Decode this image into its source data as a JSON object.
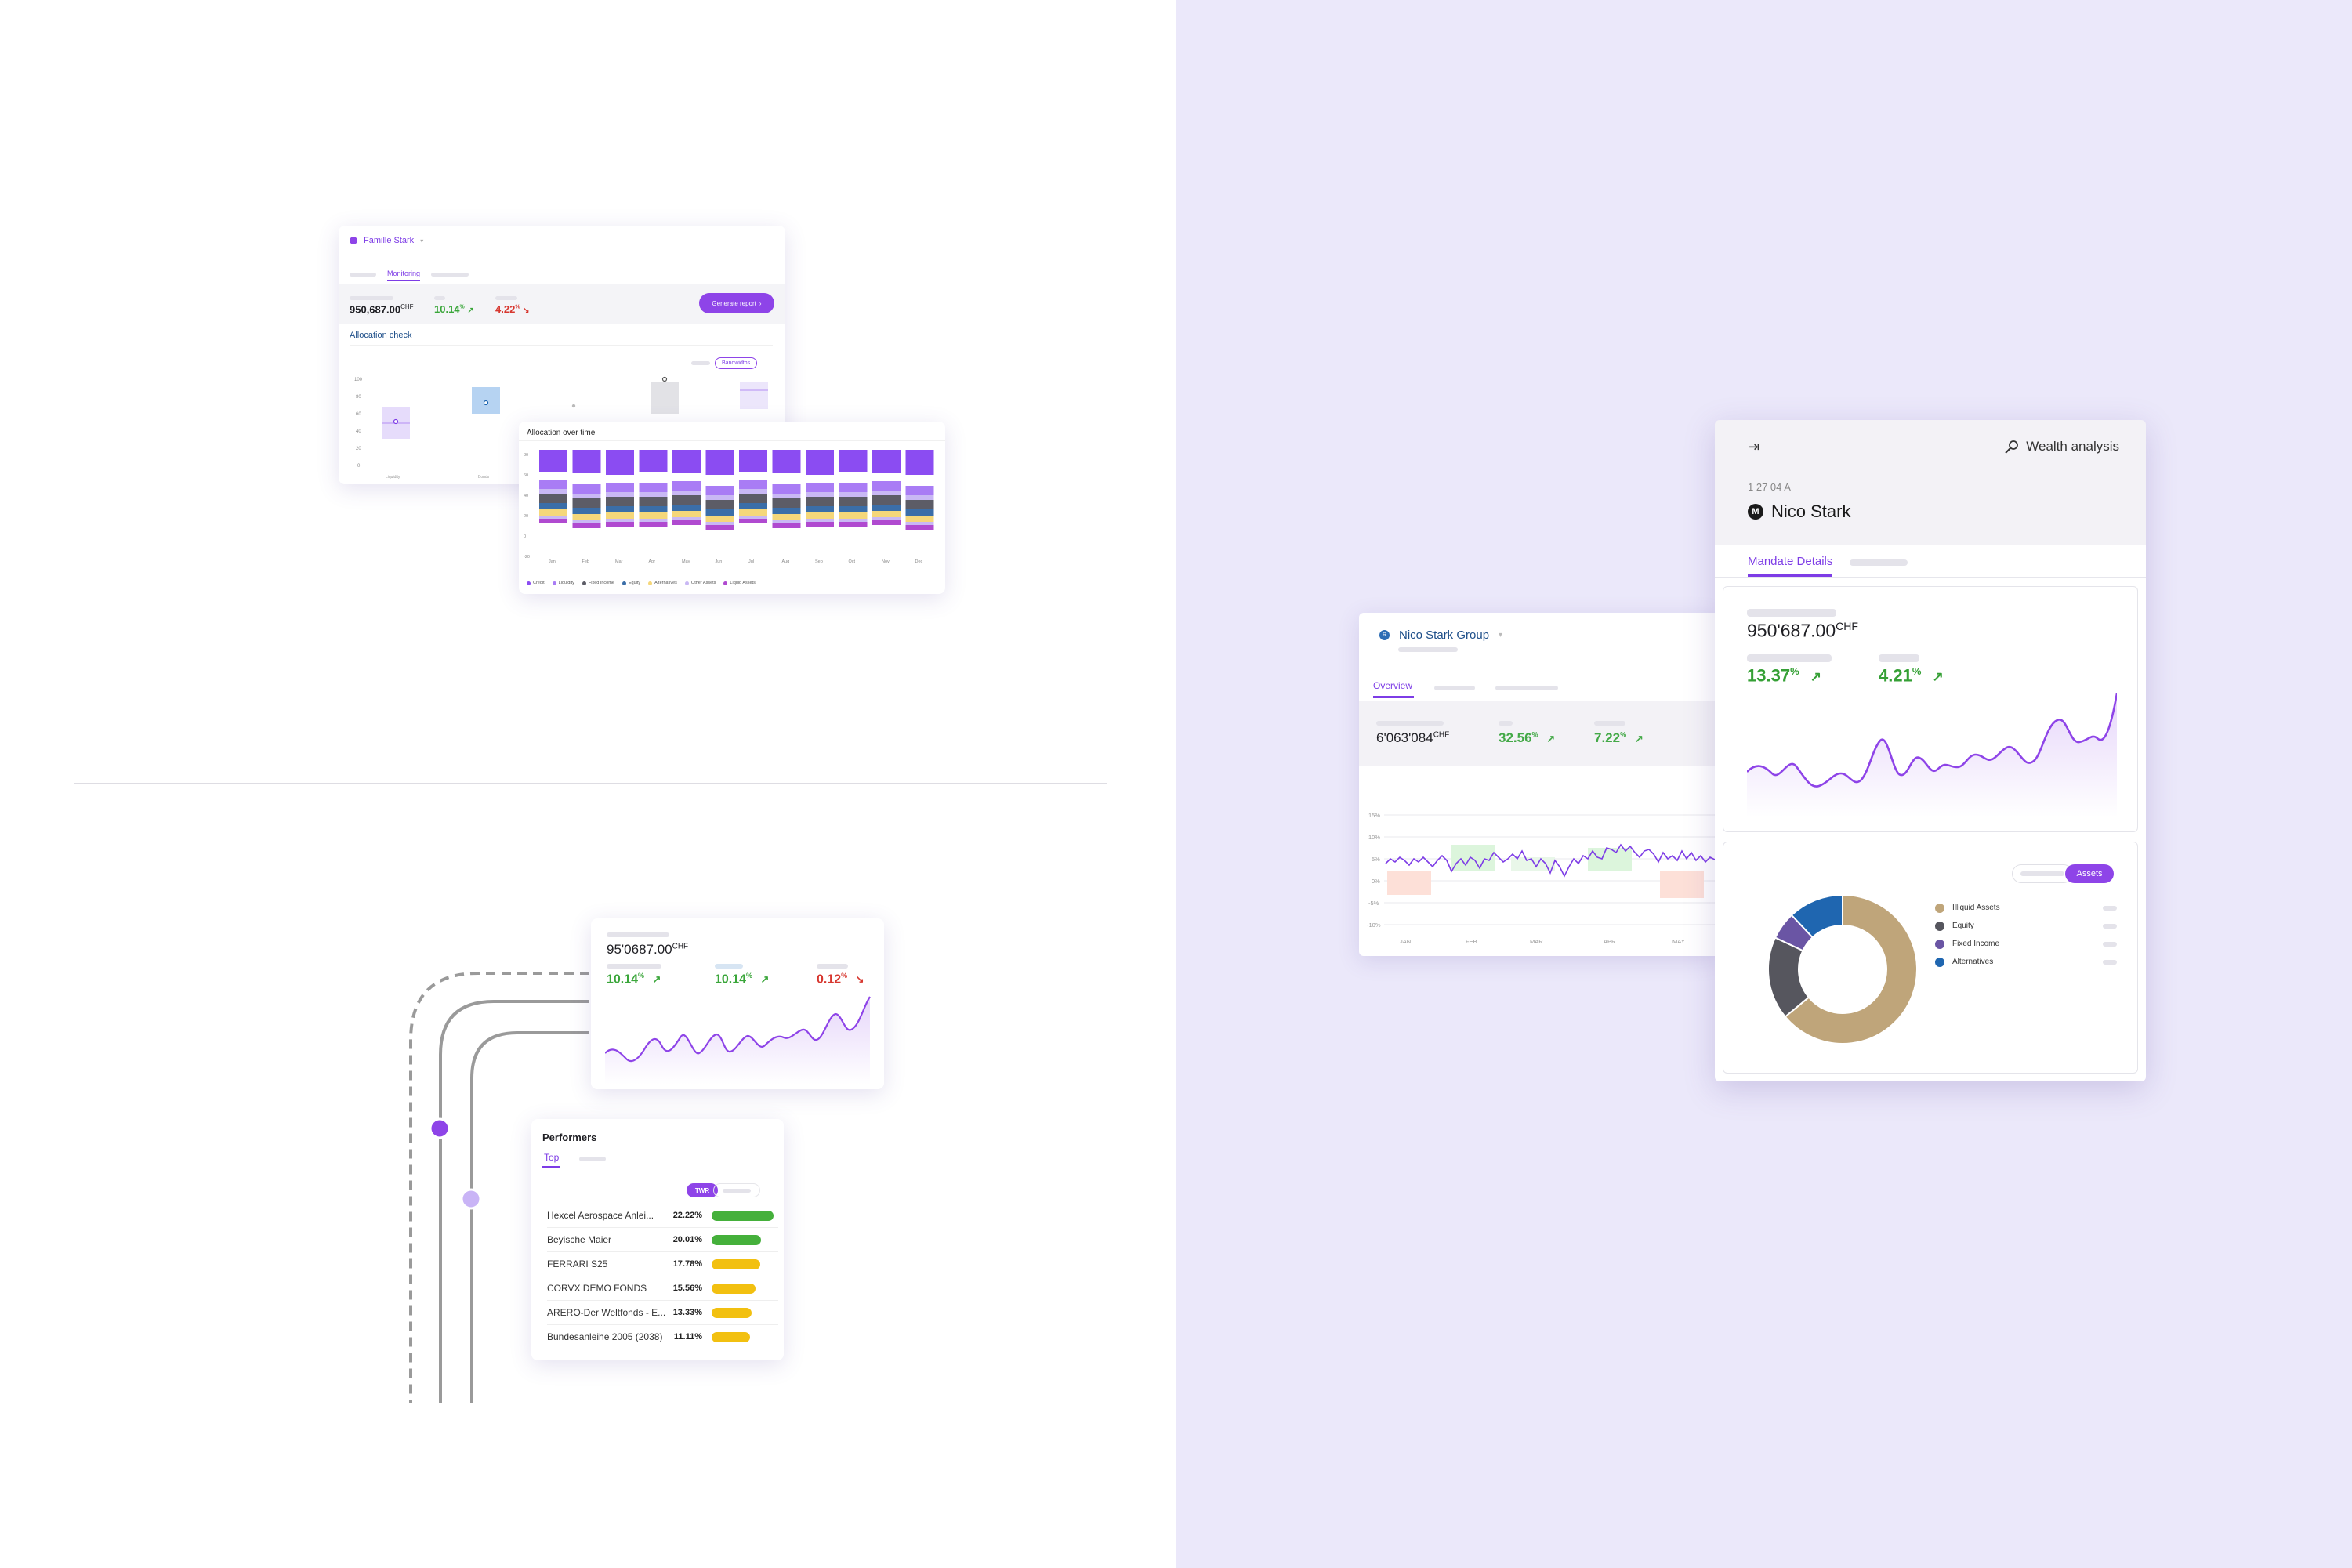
{
  "famille": {
    "title": "Famille Stark",
    "tab_active": "Monitoring",
    "kpi_value": "950,687.00",
    "kpi_currency": "CHF",
    "kpi_pct1": "10.14",
    "kpi_pct2": "4.22",
    "pct_unit": "%",
    "generate_button": "Generate report",
    "section_title": "Allocation check",
    "toggle_active": "Bandwidths",
    "y_ticks": [
      "100",
      "80",
      "60",
      "40",
      "20",
      "0"
    ],
    "x_labels": [
      "Liquidity",
      "Bonds"
    ],
    "box_markers": [
      "0",
      "0",
      "0"
    ]
  },
  "allocation_over_time": {
    "title": "Allocation over time",
    "y_ticks": [
      "80",
      "60",
      "40",
      "20",
      "0",
      "-20"
    ],
    "months": [
      "Jan",
      "Feb",
      "Mar",
      "Apr",
      "May",
      "Jun",
      "Jul",
      "Aug",
      "Sep",
      "Oct",
      "Nov",
      "Dec"
    ],
    "legend": [
      "Credit",
      "Liquidity",
      "Fixed Income",
      "Equity",
      "Alternatives",
      "Other Assets",
      "Liquid Assets"
    ],
    "colors": {
      "credit": "#8b4cf2",
      "liquid": "#a97cf5",
      "dark": "#5c5c66",
      "blue": "#3b6ea8",
      "yellow": "#f5d77a",
      "lav": "#c9b8f4",
      "pink": "#b04ad0"
    }
  },
  "summary_card": {
    "value": "95'0687.00",
    "currency": "CHF",
    "pct1": "10.14",
    "pct2": "10.14",
    "pct3": "0.12",
    "unit": "%"
  },
  "performers": {
    "title": "Performers",
    "tab_active": "Top",
    "toggle_active": "TWR",
    "rows": [
      {
        "name": "Hexcel Aerospace Anlei...",
        "value": "22.22%",
        "fill": 0.9,
        "color": "#45b03b"
      },
      {
        "name": "Beyische Maier",
        "value": "20.01%",
        "fill": 0.72,
        "color": "#45b03b"
      },
      {
        "name": "FERRARI S25",
        "value": "17.78%",
        "fill": 0.7,
        "color": "#f2c010"
      },
      {
        "name": "CORVX DEMO FONDS",
        "value": "15.56%",
        "fill": 0.64,
        "color": "#f2c010"
      },
      {
        "name": "ARERO-Der Weltfonds - E...",
        "value": "13.33%",
        "fill": 0.58,
        "color": "#f2c010"
      },
      {
        "name": "Bundesanleihe 2005 (2038)",
        "value": "11.11%",
        "fill": 0.56,
        "color": "#f2c010"
      }
    ]
  },
  "group_card": {
    "title": "Nico Stark Group",
    "tab_active": "Overview",
    "value": "6'063'084",
    "currency": "CHF",
    "pct1": "32.56",
    "pct2": "7.22",
    "unit": "%",
    "y_ticks": [
      "15%",
      "10%",
      "5%",
      "0%",
      "-5%",
      "-10%"
    ],
    "x_labels": [
      "JAN",
      "FEB",
      "MAR",
      "APR",
      "MAY"
    ]
  },
  "wealth": {
    "header_title": "Wealth analysis",
    "id": "1 27 04 A",
    "client_initial": "M",
    "client_name": "Nico Stark",
    "tab_active": "Mandate Details",
    "value": "950'687.00",
    "currency": "CHF",
    "pct1": "13.37",
    "pct2": "4.21",
    "unit": "%",
    "toggle_active": "Assets",
    "legend": [
      {
        "label": "Illiquid Assets",
        "color": "#bfa57a",
        "value": 0.64
      },
      {
        "label": "Equity",
        "color": "#56565e",
        "value": 0.18
      },
      {
        "label": "Fixed Income",
        "color": "#6a55a4",
        "value": 0.06
      },
      {
        "label": "Alternatives",
        "color": "#1f66b0",
        "value": 0.12
      }
    ]
  }
}
